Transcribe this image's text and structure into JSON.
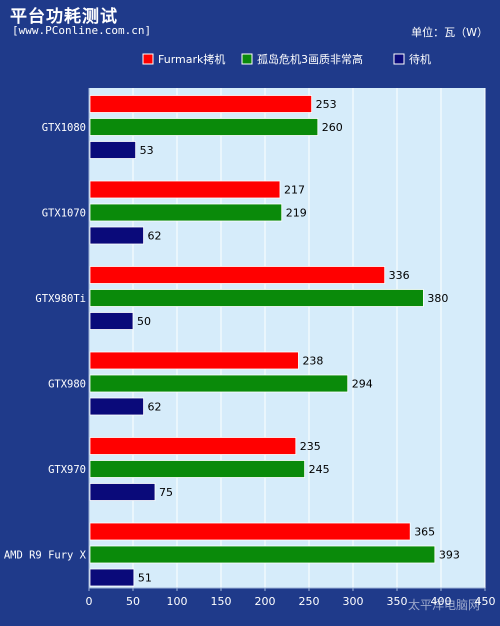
{
  "title": "平台功耗测试",
  "subtitle": "[www.PConline.com.cn]",
  "unit_label": "单位：瓦（W）",
  "watermark": "太平洋电脑网",
  "colors": {
    "background": "#1f3a8a",
    "plot_background": "#d6ecfa",
    "furmark": "#ff0000",
    "crysis": "#0a8a0a",
    "idle": "#0a0a7a"
  },
  "chart_data": {
    "type": "bar",
    "orientation": "horizontal",
    "categories": [
      "GTX1080",
      "GTX1070",
      "GTX980Ti",
      "GTX980",
      "GTX970",
      "AMD R9 Fury X"
    ],
    "series": [
      {
        "name": "Furmark拷机",
        "color": "#ff0000",
        "values": [
          253,
          217,
          336,
          238,
          235,
          365
        ]
      },
      {
        "name": "孤岛危机3画质非常高",
        "color": "#0a8a0a",
        "values": [
          260,
          219,
          380,
          294,
          245,
          393
        ]
      },
      {
        "name": "待机",
        "color": "#0a0a7a",
        "values": [
          53,
          62,
          50,
          62,
          75,
          51
        ]
      }
    ],
    "xlim": [
      0,
      450
    ],
    "xticks": [
      0,
      50,
      100,
      150,
      200,
      250,
      300,
      350,
      400,
      450
    ],
    "grid": true,
    "legend_position": "top-right"
  }
}
